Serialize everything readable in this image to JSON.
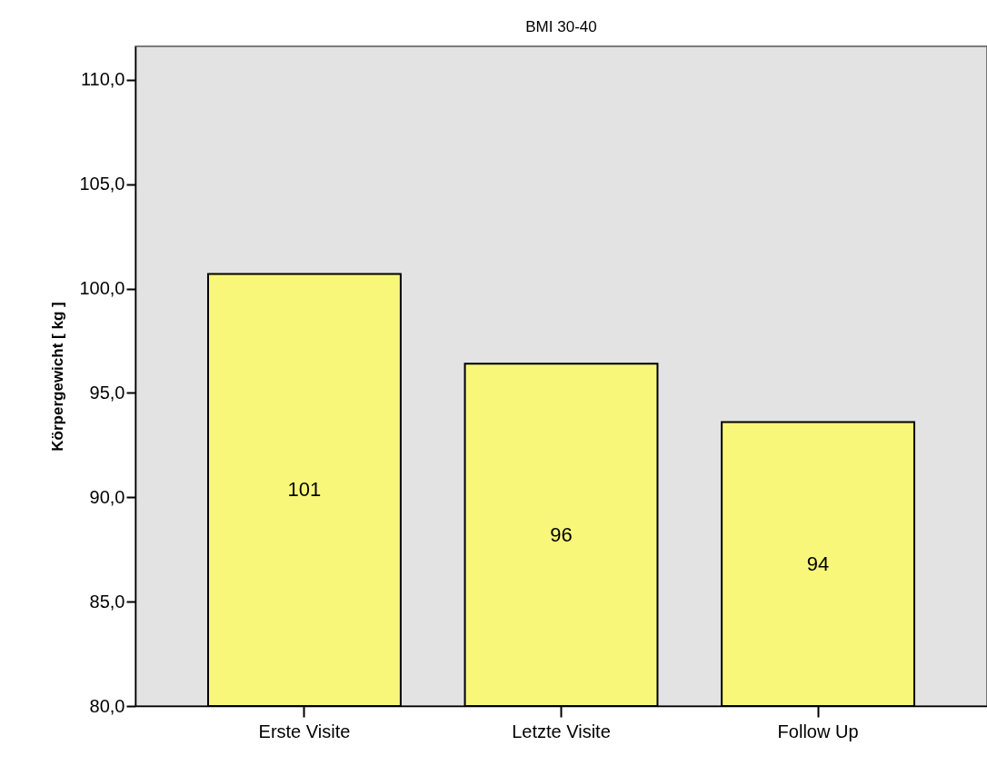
{
  "chart_data": {
    "type": "bar",
    "title": "BMI 30-40",
    "ylabel": "Körpergewicht [ kg ]",
    "categories": [
      "Erste Visite",
      "Letzte Visite",
      "Follow Up"
    ],
    "values": [
      100.7,
      96.4,
      93.6
    ],
    "value_labels": [
      "101",
      "96",
      "94"
    ],
    "color": "#f8f77a",
    "ylim": [
      80,
      111.6
    ],
    "yticks": [
      {
        "value": 80,
        "label": "80,0"
      },
      {
        "value": 85,
        "label": "85,0"
      },
      {
        "value": 90,
        "label": "90,0"
      },
      {
        "value": 95,
        "label": "95,0"
      },
      {
        "value": 100,
        "label": "100,0"
      },
      {
        "value": 105,
        "label": "105,0"
      },
      {
        "value": 110,
        "label": "110,0"
      }
    ],
    "grid": false
  }
}
